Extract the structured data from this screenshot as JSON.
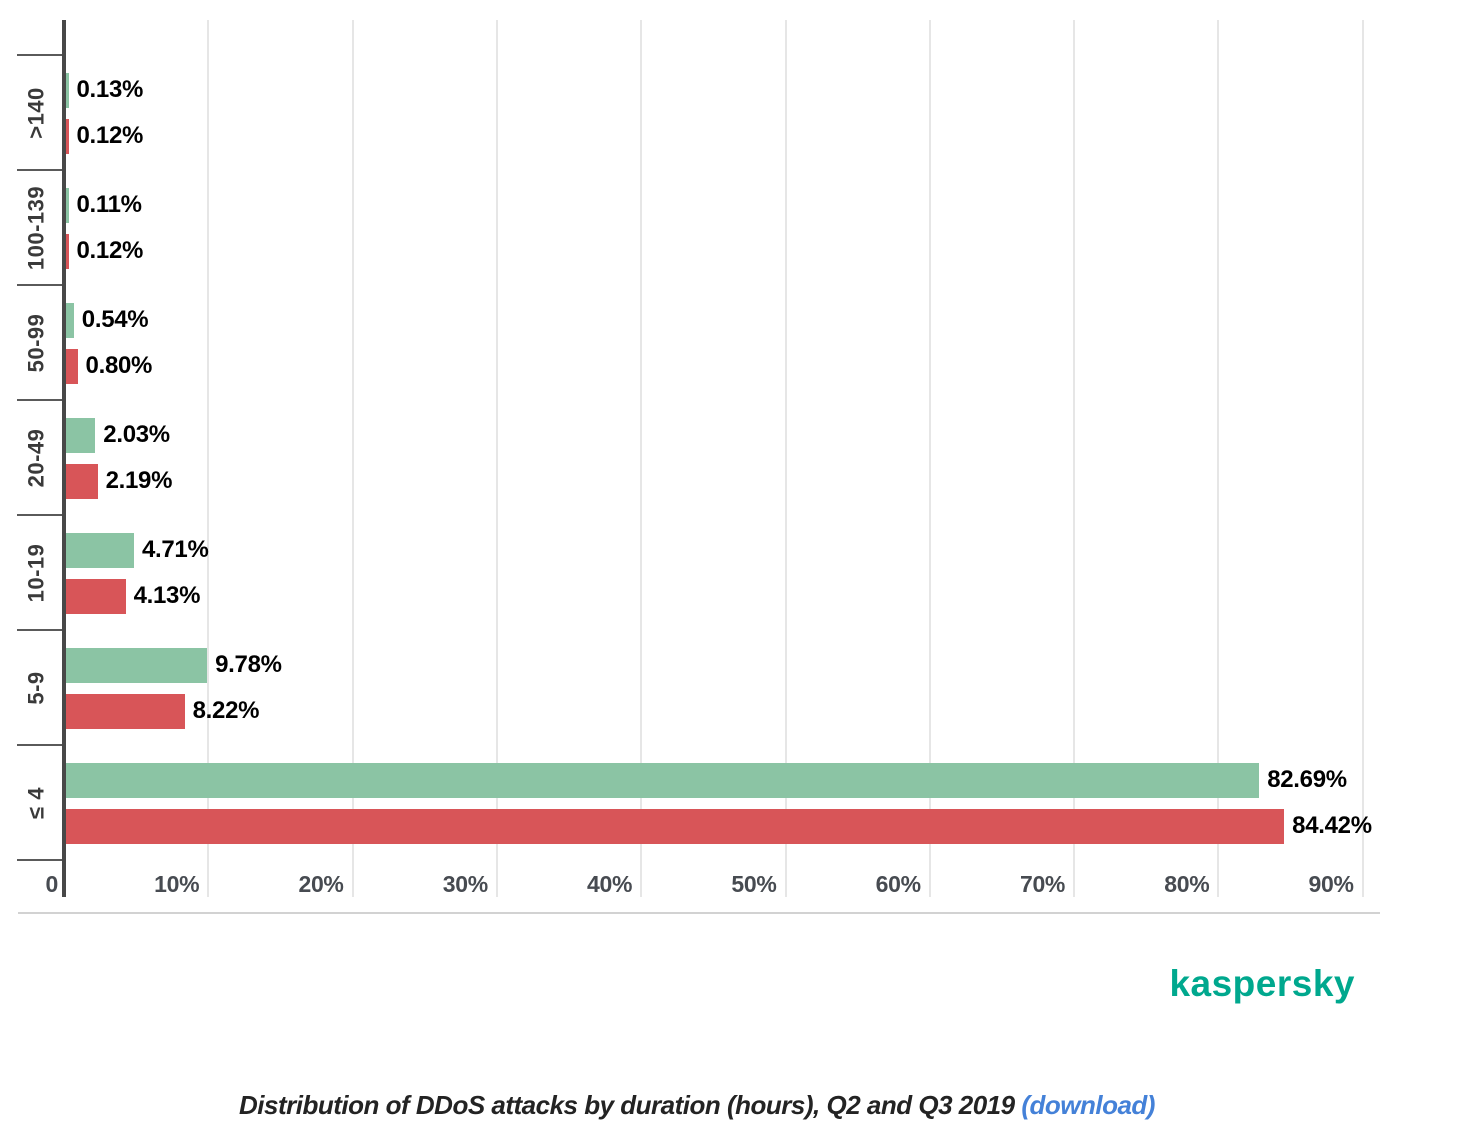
{
  "chart_data": {
    "type": "bar",
    "orientation": "horizontal",
    "categories": [
      ">140",
      "100-139",
      "50-99",
      "20-49",
      "10-19",
      "5-9",
      "≤ 4"
    ],
    "series": [
      {
        "name": "green",
        "color": "#8BC4A4",
        "values": [
          0.13,
          0.11,
          0.54,
          2.03,
          4.71,
          9.78,
          82.69
        ],
        "labels": [
          "0.13%",
          "0.11%",
          "0.54%",
          "2.03%",
          "4.71%",
          "9.78%",
          "82.69%"
        ]
      },
      {
        "name": "red",
        "color": "#D85558",
        "values": [
          0.12,
          0.12,
          0.8,
          2.19,
          4.13,
          8.22,
          84.42
        ],
        "labels": [
          "0.12%",
          "0.12%",
          "0.80%",
          "2.19%",
          "4.13%",
          "8.22%",
          "84.42%"
        ]
      }
    ],
    "x_axis": {
      "tick_labels": [
        "0",
        "10%",
        "20%",
        "30%",
        "40%",
        "50%",
        "60%",
        "70%",
        "80%",
        "90%"
      ],
      "tick_values": [
        0,
        10,
        20,
        30,
        40,
        50,
        60,
        70,
        80,
        90
      ],
      "min": 0,
      "max": 91.2,
      "grid": true
    },
    "y_axis": {
      "label": ""
    },
    "legend": "none",
    "value_labels": "outside-end"
  },
  "colors": {
    "green_bar": "#8BC4A4",
    "red_bar": "#D85558",
    "axis_line": "#484848",
    "gridline": "#e6e6e6",
    "brand_teal": "#00A88E",
    "link_blue": "#4481D8"
  },
  "branding": {
    "logo_text": "kaspersky"
  },
  "caption": {
    "text": "Distribution of DDoS attacks by duration (hours), Q2 and Q3 2019 ",
    "link_text": "(download)"
  }
}
